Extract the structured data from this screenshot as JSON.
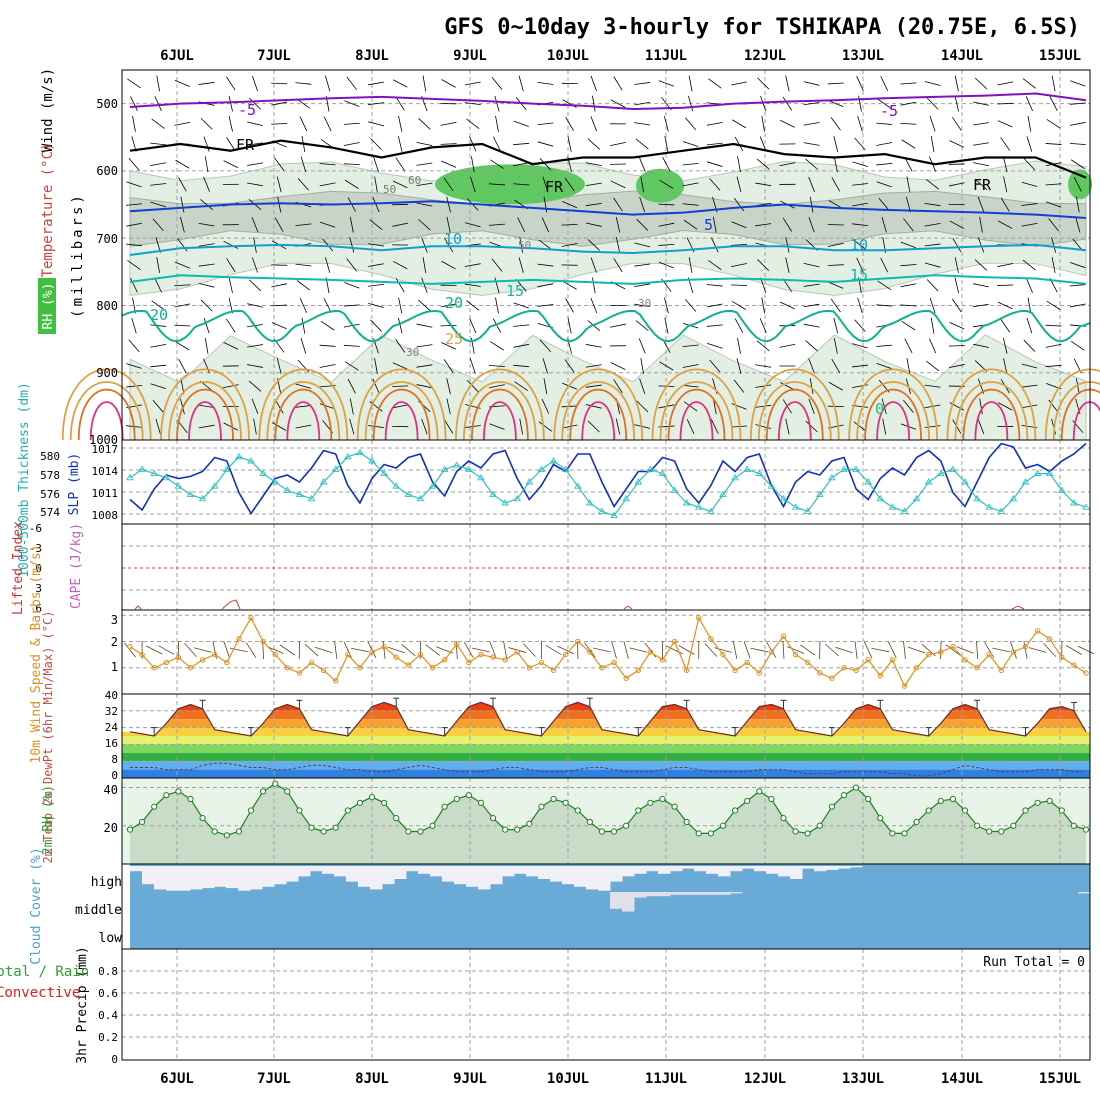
{
  "title": "GFS 0~10day 3-hourly for TSHIKAPA (20.75E, 6.5S)",
  "colors": {
    "temp_contour": "#e0a040",
    "wind_purple": "#8010c0",
    "blue_contour": "#1040d0",
    "cyan_contour": "#10a0d0",
    "teal_contour": "#10b0a0",
    "rh_light": "#e2efe2",
    "rh_mid": "#c8d4c8",
    "rh_green": "#60c860",
    "slp_line": "#1030c0",
    "thickness_line": "#30c0c0",
    "wind10_line": "#e09020",
    "rh2m_fill": "#c8dcc8",
    "cloud_blue": "#6aaad6",
    "cloud_white": "#f0f0f6"
  },
  "chart_data": {
    "x_dates": [
      "6JUL",
      "7JUL",
      "8JUL",
      "9JUL",
      "10JUL",
      "11JUL",
      "12JUL",
      "13JUL",
      "14JUL",
      "15JUL"
    ],
    "upper_air": {
      "type": "contour",
      "ylabel": "(millibars)",
      "yticks": [
        "500",
        "600",
        "700",
        "800",
        "900",
        "1000"
      ],
      "ylim": [
        1000,
        450
      ],
      "y_axis_labels": {
        "wind": "Wind (m/s)",
        "temperature": "Temperature (°C)",
        "rh": "RH (%)"
      },
      "contour_labels": {
        "freezing": "FR",
        "t_minus5": "-5",
        "t5": "5",
        "t10": "10",
        "t15": "15",
        "t20": "20",
        "t25": "25",
        "t30": "30",
        "t0": "0",
        "rh30": "30",
        "rh50": "50",
        "rh60": "60"
      },
      "isotherm_levels_mb": {
        "minus5": [
          505,
          500,
          498,
          495,
          492,
          490,
          493,
          496,
          500,
          503,
          508,
          506,
          500,
          497,
          495,
          492,
          490,
          488,
          485,
          495
        ],
        "plus5": [
          660,
          655,
          650,
          648,
          650,
          648,
          645,
          650,
          655,
          660,
          665,
          662,
          655,
          650,
          655,
          658,
          660,
          662,
          665,
          670
        ],
        "plus10": [
          725,
          715,
          712,
          710,
          712,
          718,
          712,
          712,
          715,
          720,
          722,
          718,
          712,
          712,
          718,
          718,
          715,
          712,
          710,
          718
        ],
        "plus15": [
          765,
          755,
          758,
          760,
          762,
          765,
          768,
          765,
          762,
          765,
          768,
          762,
          760,
          762,
          765,
          760,
          755,
          758,
          760,
          768
        ],
        "freezing": [
          570,
          560,
          570,
          555,
          565,
          580,
          565,
          560,
          590,
          580,
          580,
          570,
          560,
          575,
          580,
          575,
          590,
          580,
          580,
          610
        ]
      },
      "lower_contour_levels": {
        "t20_base": 820,
        "t25_base": 860,
        "t30_base": 900
      }
    },
    "thickness_slp": {
      "type": "line",
      "ylabel_left": "1000-500mb Thickness (dm)",
      "ylabel_right": "SLP (mb)",
      "yticks_left": [
        "580",
        "578",
        "576",
        "574"
      ],
      "yticks_right": [
        "1017",
        "1014",
        "1011",
        "1008"
      ],
      "ylim_slp": [
        1006,
        1018
      ],
      "slp": [
        1009.5,
        1008.0,
        1011.0,
        1013.0,
        1012.5,
        1012.8,
        1013.5,
        1015.5,
        1015.0,
        1010.5,
        1007.5,
        1010.0,
        1012.5,
        1013.0,
        1012.0,
        1014.0,
        1016.5,
        1016.0,
        1011.5,
        1009.0,
        1012.5,
        1014.5,
        1014.0,
        1015.5,
        1016.0,
        1012.0,
        1010.0,
        1013.5,
        1015.0,
        1014.0,
        1016.0,
        1016.5,
        1012.5,
        1009.5,
        1011.5,
        1014.5,
        1013.5,
        1016.0,
        1016.0,
        1012.0,
        1008.5,
        1011.0,
        1013.5,
        1013.5,
        1015.5,
        1015.0,
        1011.0,
        1009.0,
        1011.5,
        1015.0,
        1013.5,
        1015.5,
        1016.0,
        1011.5,
        1008.5,
        1012.0,
        1013.5,
        1013.0,
        1015.0,
        1015.5,
        1011.0,
        1009.5,
        1012.5,
        1014.0,
        1013.0,
        1015.5,
        1016.5,
        1015.0,
        1010.5,
        1008.5,
        1012.0,
        1015.5,
        1017.5,
        1017.0,
        1014.0,
        1014.5,
        1013.5,
        1015.0,
        1016.0,
        1017.5
      ],
      "thickness": [
        577.5,
        578.5,
        578.0,
        577.5,
        576.5,
        575.5,
        575.0,
        576.5,
        578.5,
        580.0,
        579.5,
        578.0,
        577.0,
        576.0,
        575.5,
        575.0,
        577.0,
        578.5,
        580.0,
        580.5,
        579.5,
        578.0,
        576.5,
        575.5,
        575.0,
        576.5,
        578.5,
        579.0,
        578.5,
        577.5,
        575.5,
        574.5,
        575.0,
        577.0,
        578.5,
        579.5,
        578.5,
        576.5,
        574.5,
        573.5,
        573.0,
        575.0,
        577.0,
        578.5,
        578.0,
        576.0,
        574.5,
        574.0,
        573.5,
        575.5,
        577.5,
        578.5,
        578.0,
        576.5,
        575.0,
        574.0,
        573.5,
        575.5,
        577.5,
        578.5,
        578.5,
        577.0,
        575.0,
        574.0,
        573.5,
        575.0,
        577.0,
        578.0,
        578.5,
        577.0,
        575.0,
        574.0,
        573.5,
        575.0,
        577.0,
        578.0,
        578.0,
        576.0,
        574.5,
        574.0
      ]
    },
    "cape_li": {
      "type": "line",
      "ylabel_left": "Lifted Index",
      "ylabel_right": "CAPE (J/kg)",
      "yticks": [
        "-6",
        "-3",
        "0",
        "3",
        "6"
      ]
    },
    "wind10m": {
      "type": "line",
      "ylabel": "10m Wind Speed & Barbs (m/s)",
      "yticks": [
        "3",
        "2",
        "1"
      ],
      "ylim": [
        0,
        3.2
      ],
      "values": [
        1.8,
        1.5,
        1.0,
        1.2,
        1.4,
        1.0,
        1.3,
        1.5,
        1.2,
        2.1,
        2.9,
        2.0,
        1.5,
        1.0,
        0.8,
        1.2,
        0.9,
        0.5,
        1.5,
        1.0,
        1.6,
        1.8,
        1.4,
        1.1,
        1.5,
        1.0,
        1.3,
        1.9,
        1.2,
        1.5,
        1.4,
        1.3,
        1.6,
        1.0,
        1.2,
        0.9,
        1.5,
        2.0,
        1.6,
        1.0,
        1.2,
        0.6,
        0.9,
        1.6,
        1.3,
        2.0,
        0.9,
        2.9,
        2.1,
        1.5,
        0.9,
        1.2,
        0.8,
        1.6,
        2.2,
        1.5,
        1.2,
        0.8,
        0.6,
        1.0,
        0.9,
        1.3,
        0.7,
        1.3,
        0.3,
        1.0,
        1.5,
        1.6,
        1.8,
        1.3,
        1.0,
        1.5,
        0.9,
        1.6,
        1.8,
        2.4,
        2.1,
        1.4,
        1.1,
        0.8
      ]
    },
    "temp2m": {
      "type": "area",
      "ylabel": "2m Temp 2m DewPt (6hr Min/Max) (°C)",
      "yticks": [
        "40",
        "32",
        "24",
        "16",
        "8",
        "0"
      ],
      "ylim": [
        0,
        40
      ],
      "temp": [
        22,
        21,
        20,
        26,
        33,
        35,
        33,
        23,
        22,
        21,
        20,
        26,
        33,
        35,
        33,
        23,
        22,
        21,
        20,
        27,
        34,
        36,
        34,
        23,
        22,
        21,
        20,
        27,
        34,
        36,
        34,
        23,
        22,
        21,
        20,
        27,
        34,
        36,
        34,
        23,
        22,
        21,
        20,
        27,
        34,
        35,
        33,
        23,
        22,
        21,
        20,
        27,
        34,
        35,
        33,
        23,
        22,
        21,
        20,
        26,
        33,
        35,
        33,
        23,
        22,
        21,
        20,
        26,
        33,
        35,
        33,
        23,
        22,
        21,
        20,
        26,
        33,
        34,
        32,
        22
      ],
      "dewpt": [
        5,
        5,
        5,
        4,
        4,
        4,
        6,
        7,
        7,
        6,
        5,
        5,
        4,
        4,
        5,
        6,
        6,
        5,
        4,
        4,
        3,
        3,
        4,
        5,
        6,
        5,
        4,
        3,
        3,
        3,
        4,
        5,
        5,
        4,
        3,
        3,
        3,
        4,
        5,
        5,
        4,
        3,
        3,
        3,
        4,
        5,
        5,
        4,
        3,
        3,
        3,
        3,
        4,
        4,
        4,
        3,
        2,
        2,
        2,
        3,
        3,
        3,
        3,
        2,
        2,
        1,
        1,
        2,
        4,
        6,
        5,
        4,
        3,
        3,
        3,
        4,
        4,
        4,
        3,
        3
      ]
    },
    "rh2m": {
      "type": "area",
      "ylabel": "2m RH (%)",
      "yticks": [
        "40",
        "20"
      ],
      "ylim": [
        0,
        45
      ],
      "values": [
        18,
        22,
        30,
        36,
        38,
        34,
        24,
        17,
        15,
        17,
        28,
        38,
        42,
        38,
        28,
        19,
        17,
        19,
        28,
        32,
        35,
        32,
        24,
        17,
        17,
        20,
        30,
        34,
        36,
        32,
        24,
        18,
        18,
        21,
        30,
        34,
        32,
        28,
        22,
        17,
        17,
        20,
        28,
        32,
        34,
        30,
        22,
        16,
        16,
        20,
        28,
        33,
        38,
        34,
        24,
        17,
        16,
        20,
        30,
        36,
        40,
        34,
        24,
        16,
        16,
        22,
        28,
        33,
        34,
        28,
        20,
        17,
        17,
        20,
        28,
        32,
        33,
        28,
        20,
        18
      ]
    },
    "cloud": {
      "type": "heatmap",
      "ylabel": "Cloud Cover (%)",
      "levels": [
        "high",
        "middle",
        "low"
      ],
      "high": [
        80,
        30,
        10,
        5,
        5,
        10,
        15,
        20,
        15,
        5,
        10,
        20,
        30,
        40,
        60,
        80,
        70,
        60,
        40,
        20,
        10,
        30,
        50,
        80,
        70,
        60,
        40,
        30,
        20,
        10,
        30,
        60,
        70,
        60,
        50,
        40,
        30,
        20,
        10,
        5,
        40,
        60,
        70,
        80,
        70,
        80,
        90,
        80,
        70,
        60,
        80,
        90,
        80,
        70,
        60,
        50,
        90,
        80,
        85,
        90,
        95,
        100,
        100,
        100,
        100,
        100,
        100,
        100,
        100,
        100,
        100,
        100,
        100,
        100,
        100,
        100,
        100,
        100,
        100,
        100
      ],
      "middle": [
        100,
        100,
        100,
        100,
        100,
        100,
        100,
        100,
        100,
        100,
        100,
        100,
        100,
        100,
        100,
        100,
        100,
        100,
        100,
        100,
        100,
        100,
        100,
        100,
        100,
        100,
        100,
        100,
        100,
        100,
        100,
        100,
        100,
        100,
        100,
        100,
        100,
        100,
        100,
        100,
        40,
        30,
        80,
        85,
        85,
        90,
        90,
        90,
        90,
        90,
        95,
        100,
        100,
        100,
        100,
        100,
        100,
        100,
        100,
        100,
        100,
        100,
        100,
        100,
        100,
        100,
        100,
        100,
        100,
        100,
        100,
        100,
        100,
        100,
        100,
        100,
        100,
        100,
        100,
        95
      ]
    },
    "precip": {
      "type": "bar",
      "ylabel": "3hr Precip (mm)",
      "left_label_top": "Total / Rain",
      "left_label_bottom": "Convective",
      "yticks": [
        "0.8",
        "0.6",
        "0.4",
        "0.2",
        "0"
      ],
      "ylim": [
        0,
        1
      ],
      "annotation": "Run Total = 0"
    }
  }
}
